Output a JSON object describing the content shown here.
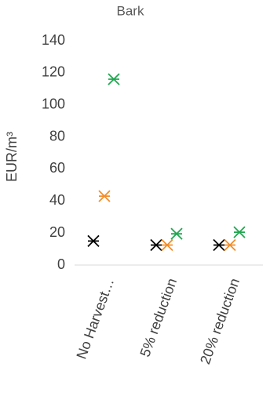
{
  "chart_data": {
    "type": "scatter",
    "title": "Bark",
    "ylabel": "EUR/m³",
    "categories": [
      "No Harvest…",
      "5% reduction",
      "20% reduction"
    ],
    "series": [
      {
        "color": "#000000",
        "values": [
          15,
          12.5,
          12.5
        ]
      },
      {
        "color": "#f28e2b",
        "values": [
          43,
          12.5,
          12.5
        ]
      },
      {
        "color": "#1fa84f",
        "values": [
          116,
          19.5,
          20.5
        ]
      }
    ],
    "ylim": [
      0,
      140
    ],
    "yticks": [
      0,
      20,
      40,
      60,
      80,
      100,
      120,
      140
    ],
    "grid": false
  }
}
